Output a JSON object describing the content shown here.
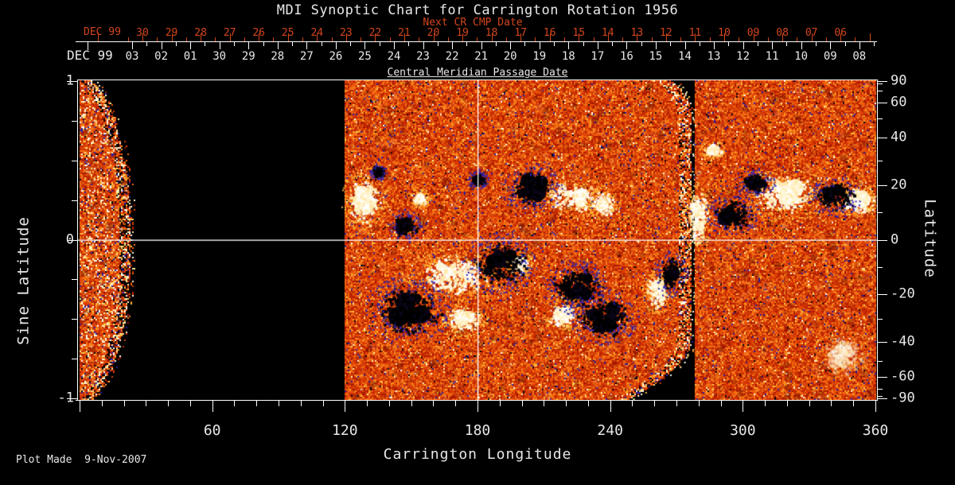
{
  "title": "MDI Synoptic Chart for Carrington Rotation 1956",
  "footer_note": "Plot Made  9-Nov-2007",
  "colors": {
    "background": "#000000",
    "axis_white": "#ffffff",
    "axis_red": "#d2451c",
    "title_text": "#e8e8e8"
  },
  "chart_data": {
    "type": "heatmap",
    "title": "MDI Synoptic Chart for Carrington Rotation 1956",
    "top_axis_next_cr": {
      "label": "Next CR CMP Date",
      "month": "DEC 99",
      "ticks": [
        "30",
        "29",
        "28",
        "27",
        "26",
        "25",
        "24",
        "23",
        "22",
        "21",
        "20",
        "19",
        "18",
        "17",
        "16",
        "15",
        "14",
        "13",
        "12",
        "11",
        "10",
        "09",
        "08",
        "07",
        "06"
      ]
    },
    "top_axis_cmp": {
      "label": "Central Meridian Passage Date",
      "month": "DEC 99",
      "ticks": [
        "03",
        "02",
        "01",
        "30",
        "29",
        "28",
        "27",
        "26",
        "25",
        "24",
        "23",
        "22",
        "21",
        "20",
        "19",
        "18",
        "17",
        "16",
        "15",
        "14",
        "13",
        "12",
        "11",
        "10",
        "09",
        "08"
      ]
    },
    "x_axis": {
      "label": "Carrington Longitude",
      "min": 0,
      "max": 360,
      "major_ticks": [
        60,
        120,
        180,
        240,
        300,
        360
      ],
      "minor_step": 10
    },
    "y_axis_left": {
      "label": "Sine Latitude",
      "min": -1,
      "max": 1,
      "major_ticks": [
        1,
        0,
        -1
      ],
      "minor_step": 0.25
    },
    "y_axis_right": {
      "label": "Latitude",
      "major_ticks": [
        90,
        60,
        40,
        20,
        0,
        -20,
        -40,
        -60,
        -90
      ],
      "minor_ticks": [
        80,
        70,
        50,
        30,
        10,
        -10,
        -30,
        -50,
        -70,
        -80
      ]
    },
    "reference_lines": {
      "longitude": 180,
      "sine_latitude": 0
    },
    "data_segments": [
      {
        "name": "east-limb-crescent",
        "lon_start": 0,
        "lon_end": 22,
        "edge": "curved-right"
      },
      {
        "name": "central-block",
        "lon_start": 120,
        "lon_end": 278,
        "edge": "curved-right"
      },
      {
        "name": "west-block",
        "lon_start": 279,
        "lon_end": 360,
        "edge": "straight"
      }
    ],
    "palette": {
      "quiet_sun": [
        "#a81800",
        "#c22600",
        "#d83600",
        "#e64d06",
        "#ef650f",
        "#f5791c",
        "#d04010"
      ],
      "accents": {
        "yellow": "#ffa126",
        "bright_yellow": "#ffc84d",
        "cream": "#ffeaa0",
        "white": "#fffbe8",
        "blue": "#2a1f9e",
        "dark": "#0a0410"
      }
    },
    "active_regions": [
      {
        "lon": 128.9,
        "sine_lat": 0.248,
        "r_lon": 5.0,
        "r_slat": 0.1,
        "polarity": "positive"
      },
      {
        "lon": 153.7,
        "sine_lat": 0.26,
        "r_lon": 2.2,
        "r_slat": 0.03,
        "polarity": "positive"
      },
      {
        "lon": 222.5,
        "sine_lat": 0.272,
        "r_lon": 7.9,
        "r_slat": 0.06,
        "polarity": "positive"
      },
      {
        "lon": 236.9,
        "sine_lat": 0.228,
        "r_lon": 3.6,
        "r_slat": 0.05,
        "polarity": "positive"
      },
      {
        "lon": 279.7,
        "sine_lat": 0.147,
        "r_lon": 2.9,
        "r_slat": 0.11,
        "polarity": "positive"
      },
      {
        "lon": 286.2,
        "sine_lat": 0.565,
        "r_lon": 2.5,
        "r_slat": 0.03,
        "polarity": "positive"
      },
      {
        "lon": 318.6,
        "sine_lat": 0.288,
        "r_lon": 9.0,
        "r_slat": 0.08,
        "polarity": "positive"
      },
      {
        "lon": 352.1,
        "sine_lat": 0.248,
        "r_lon": 5.0,
        "r_slat": 0.06,
        "polarity": "positive"
      },
      {
        "lon": 169.2,
        "sine_lat": -0.218,
        "r_lon": 10.0,
        "r_slat": 0.08,
        "polarity": "positive"
      },
      {
        "lon": 173.9,
        "sine_lat": -0.504,
        "r_lon": 5.0,
        "r_slat": 0.05,
        "polarity": "positive"
      },
      {
        "lon": 218.2,
        "sine_lat": -0.474,
        "r_lon": 4.3,
        "r_slat": 0.05,
        "polarity": "positive"
      },
      {
        "lon": 261.4,
        "sine_lat": -0.323,
        "r_lon": 3.2,
        "r_slat": 0.07,
        "polarity": "positive"
      },
      {
        "lon": 198.7,
        "sine_lat": -0.153,
        "r_lon": 2.9,
        "r_slat": 0.04,
        "polarity": "positive"
      },
      {
        "lon": 345.6,
        "sine_lat": -0.72,
        "r_lon": 5.8,
        "r_slat": 0.08,
        "polarity": "positive",
        "intensity": 0.5
      },
      {
        "lon": 146.9,
        "sine_lat": 0.088,
        "r_lon": 3.6,
        "r_slat": 0.05,
        "polarity": "negative"
      },
      {
        "lon": 204.5,
        "sine_lat": 0.328,
        "r_lon": 6.5,
        "r_slat": 0.07,
        "polarity": "negative"
      },
      {
        "lon": 295.2,
        "sine_lat": 0.158,
        "r_lon": 5.8,
        "r_slat": 0.06,
        "polarity": "negative"
      },
      {
        "lon": 305.3,
        "sine_lat": 0.358,
        "r_lon": 4.3,
        "r_slat": 0.04,
        "polarity": "negative"
      },
      {
        "lon": 341.3,
        "sine_lat": 0.273,
        "r_lon": 5.8,
        "r_slat": 0.06,
        "polarity": "negative"
      },
      {
        "lon": 148.3,
        "sine_lat": -0.434,
        "r_lon": 9.4,
        "r_slat": 0.1,
        "polarity": "negative"
      },
      {
        "lon": 190.1,
        "sine_lat": -0.143,
        "r_lon": 7.9,
        "r_slat": 0.09,
        "polarity": "negative"
      },
      {
        "lon": 224.6,
        "sine_lat": -0.293,
        "r_lon": 7.2,
        "r_slat": 0.08,
        "polarity": "negative"
      },
      {
        "lon": 236.9,
        "sine_lat": -0.484,
        "r_lon": 7.2,
        "r_slat": 0.08,
        "polarity": "negative"
      },
      {
        "lon": 267.1,
        "sine_lat": -0.218,
        "r_lon": 3.6,
        "r_slat": 0.07,
        "polarity": "negative"
      },
      {
        "lon": 180.0,
        "sine_lat": 0.383,
        "r_lon": 2.2,
        "r_slat": 0.03,
        "polarity": "negative"
      },
      {
        "lon": 135.0,
        "sine_lat": 0.43,
        "r_lon": 1.8,
        "r_slat": 0.025,
        "polarity": "negative"
      }
    ]
  }
}
